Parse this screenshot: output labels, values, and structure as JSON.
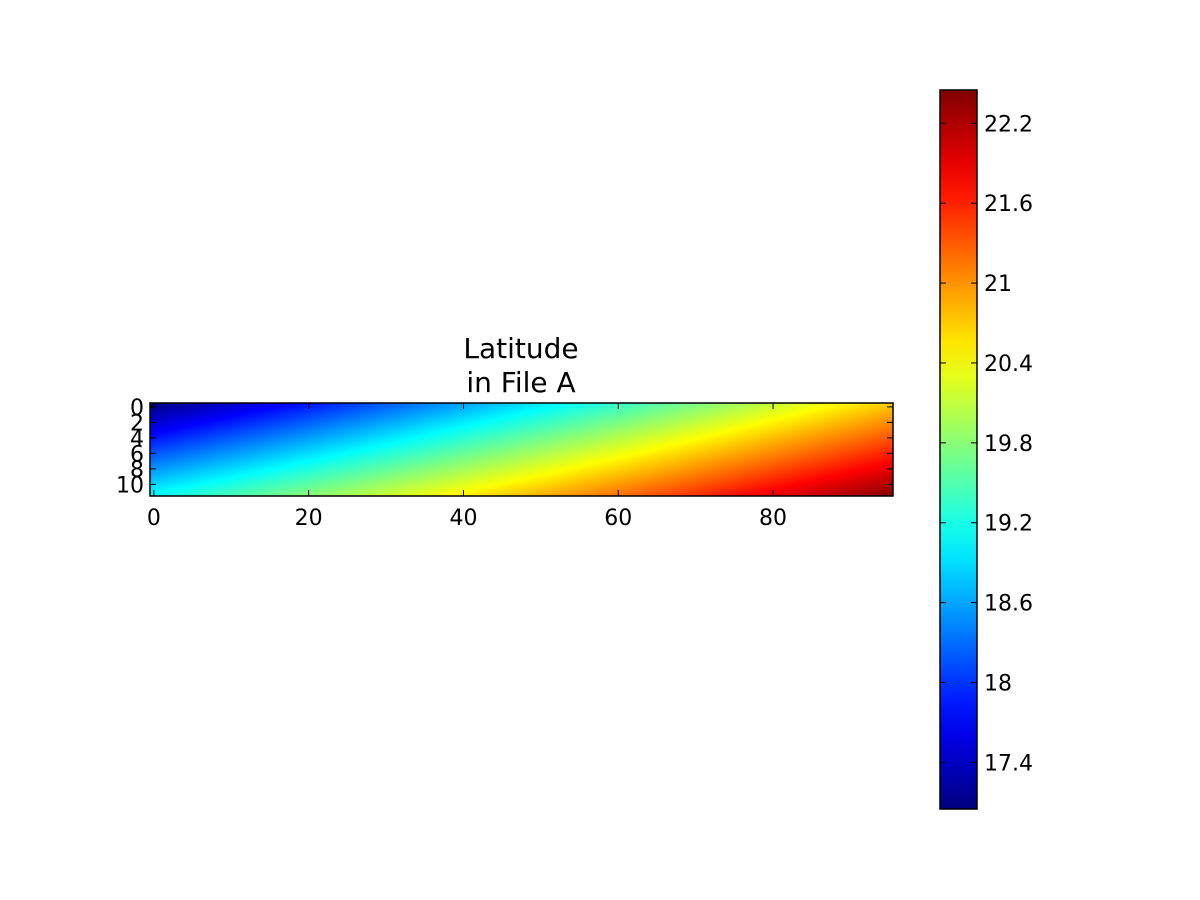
{
  "chart_data": {
    "type": "heatmap",
    "title_lines": [
      "Latitude",
      "in File A"
    ],
    "xlabel": "",
    "ylabel": "",
    "colormap": "jet",
    "grid": false,
    "x_range": [
      -0.5,
      95.5
    ],
    "y_range": [
      -0.5,
      11.5
    ],
    "x_ticks": [
      0,
      20,
      40,
      60,
      80
    ],
    "y_ticks": [
      0,
      2,
      4,
      6,
      8,
      10
    ],
    "corner_values": {
      "top_left": 17.05,
      "top_right": 20.7,
      "bottom_left": 19.1,
      "bottom_right": 22.4
    },
    "colorbar": {
      "range": [
        17.05,
        22.45
      ],
      "ticks": [
        17.4,
        18,
        18.6,
        19.2,
        19.8,
        20.4,
        21,
        21.6,
        22.2
      ],
      "tick_labels": [
        "17.4",
        "18",
        "18.6",
        "19.2",
        "19.8",
        "20.4",
        "21",
        "21.6",
        "22.2"
      ]
    }
  }
}
